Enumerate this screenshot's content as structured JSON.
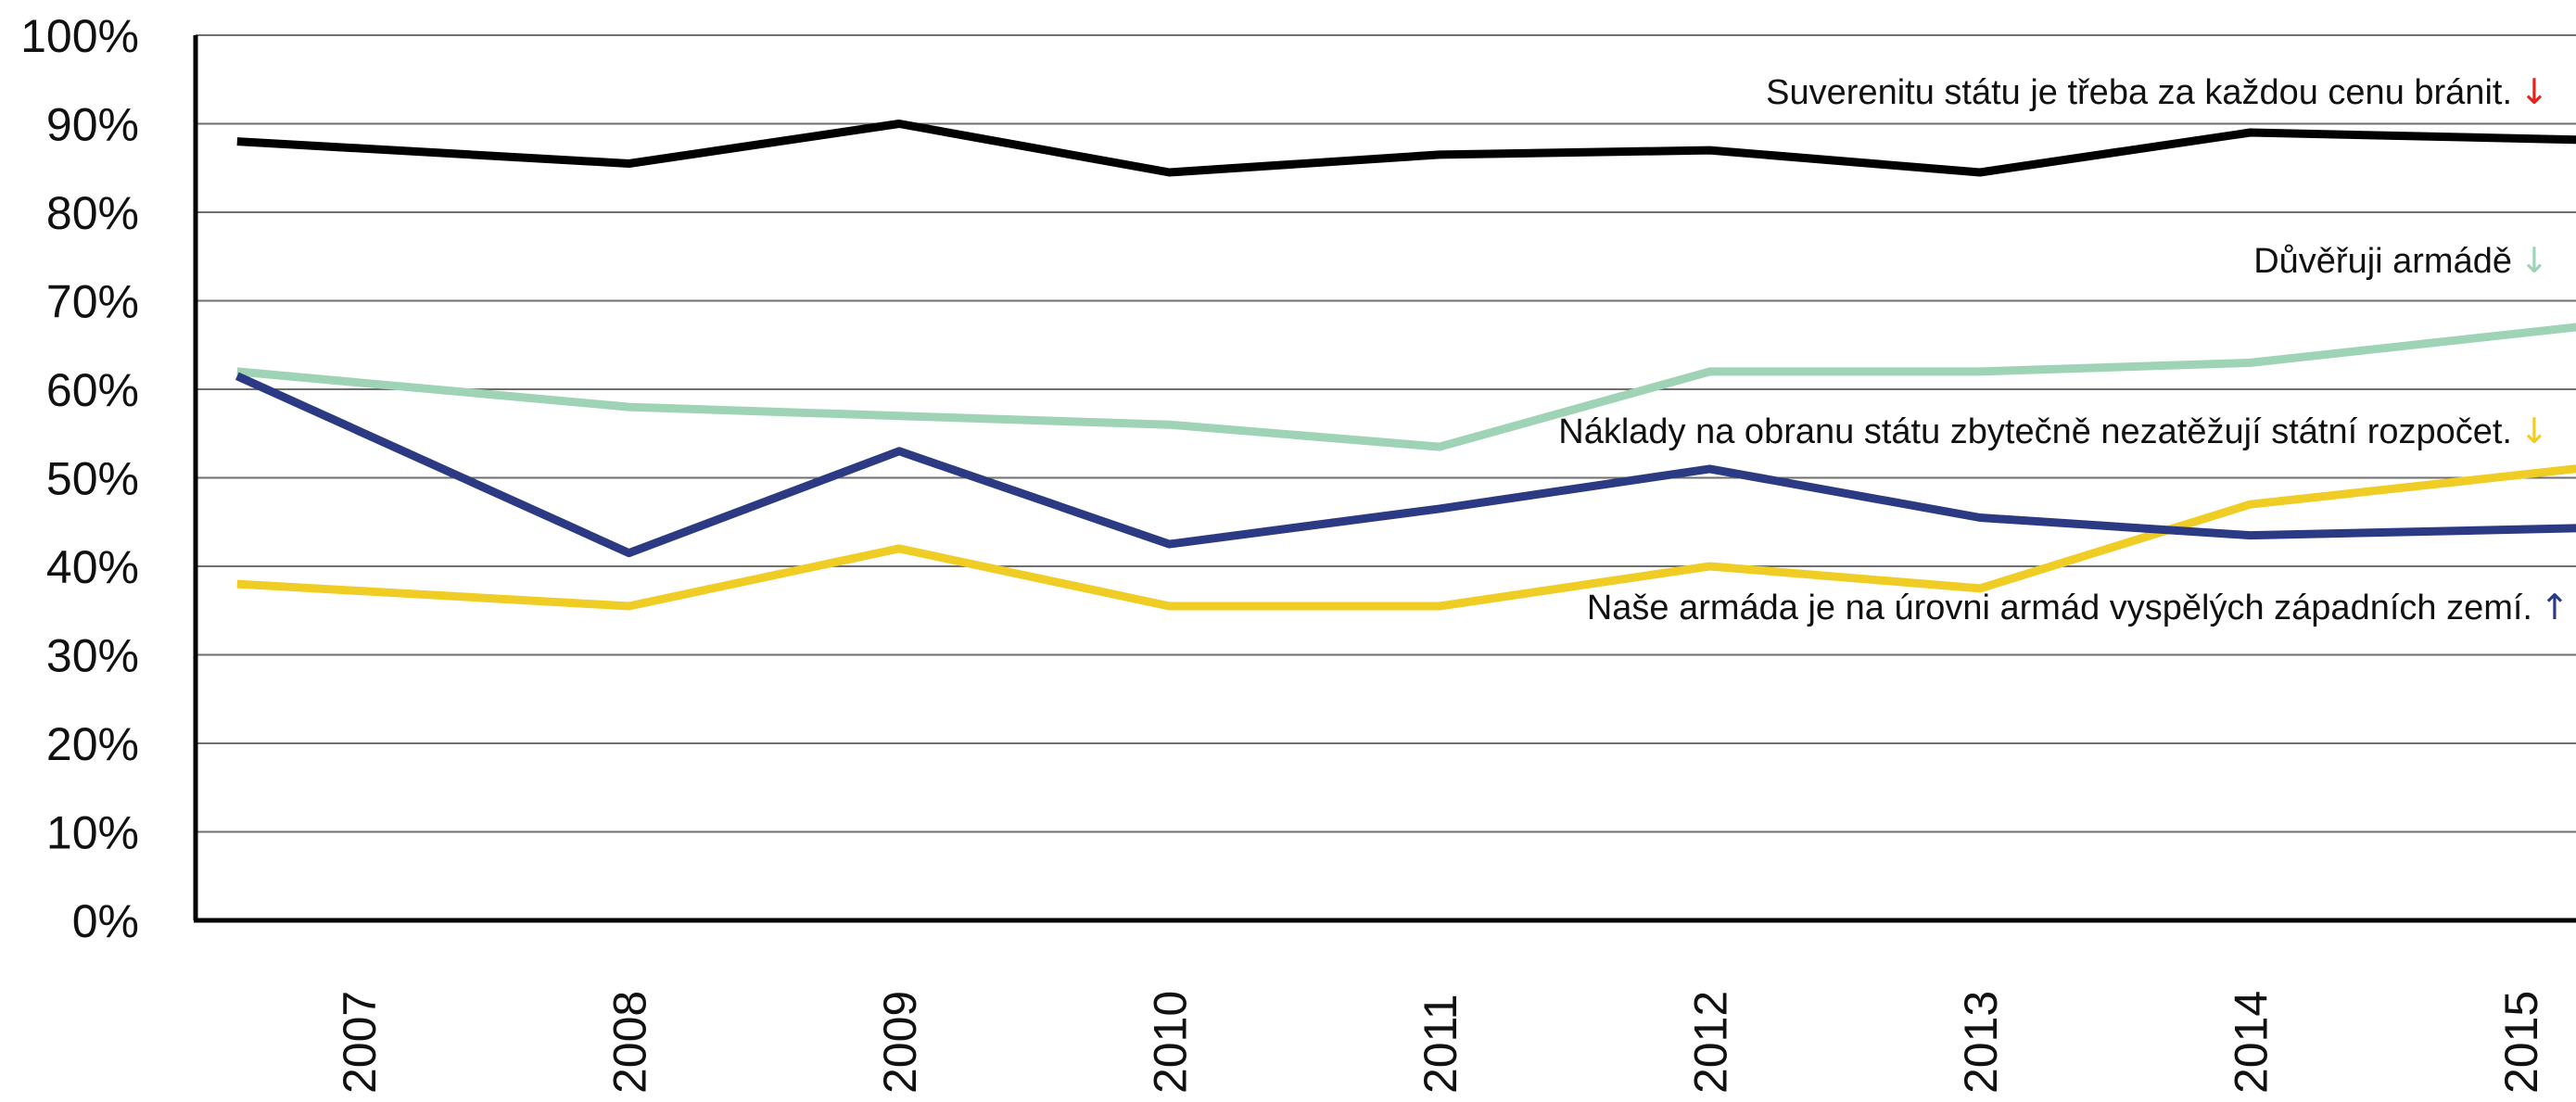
{
  "chart_data": {
    "type": "line",
    "title": "",
    "xlabel": "",
    "ylabel": "",
    "ylim": [
      0,
      100
    ],
    "ytick_values": [
      0,
      10,
      20,
      30,
      40,
      50,
      60,
      70,
      80,
      90,
      100
    ],
    "ytick_labels": [
      "0%",
      "10%",
      "20%",
      "30%",
      "40%",
      "50%",
      "60%",
      "70%",
      "80%",
      "90%",
      "100%"
    ],
    "x_labels": [
      "2007",
      "2008",
      "2009",
      "2010",
      "2011",
      "2012",
      "2013",
      "2014",
      "2015"
    ],
    "grid": true,
    "series": [
      {
        "name": "Suverenitu státu je třeba za každou cenu bránit.",
        "color": "#000000",
        "arrow": "↓",
        "arrow_color": "#e2231a",
        "x": [
          2006.55,
          2008,
          2009,
          2010,
          2011,
          2012,
          2013,
          2014,
          2015.5
        ],
        "y": [
          88,
          85.5,
          90,
          84.5,
          86.5,
          87,
          84.5,
          89,
          88
        ]
      },
      {
        "name": "Důvěřuji armádě",
        "color": "#9fd3b5",
        "arrow": "↓",
        "arrow_color": "#9fd3b5",
        "x": [
          2006.55,
          2008,
          2009,
          2010,
          2011,
          2012,
          2013,
          2014,
          2015.5
        ],
        "y": [
          62,
          58,
          57,
          56,
          53.5,
          62,
          62,
          63,
          68
        ]
      },
      {
        "name": "Náklady na obranu státu zbytečně nezatěžují státní rozpočet.",
        "color": "#f0cd25",
        "arrow": "↓",
        "arrow_color": "#f0cd25",
        "x": [
          2006.55,
          2008,
          2009,
          2010,
          2011,
          2012,
          2013,
          2014,
          2015.5
        ],
        "y": [
          38,
          35.5,
          42,
          35.5,
          35.5,
          40,
          37.5,
          47,
          52
        ]
      },
      {
        "name": "Naše armáda je na úrovni armád vyspělých západních zemí.",
        "color": "#2b3a82",
        "arrow": "↑",
        "arrow_color": "#2b3a82",
        "x": [
          2006.55,
          2008,
          2009,
          2010,
          2011,
          2012,
          2013,
          2014,
          2015.5
        ],
        "y": [
          61.5,
          41.5,
          53,
          42.5,
          46.5,
          51,
          45.5,
          43.5,
          44.5
        ]
      }
    ]
  }
}
